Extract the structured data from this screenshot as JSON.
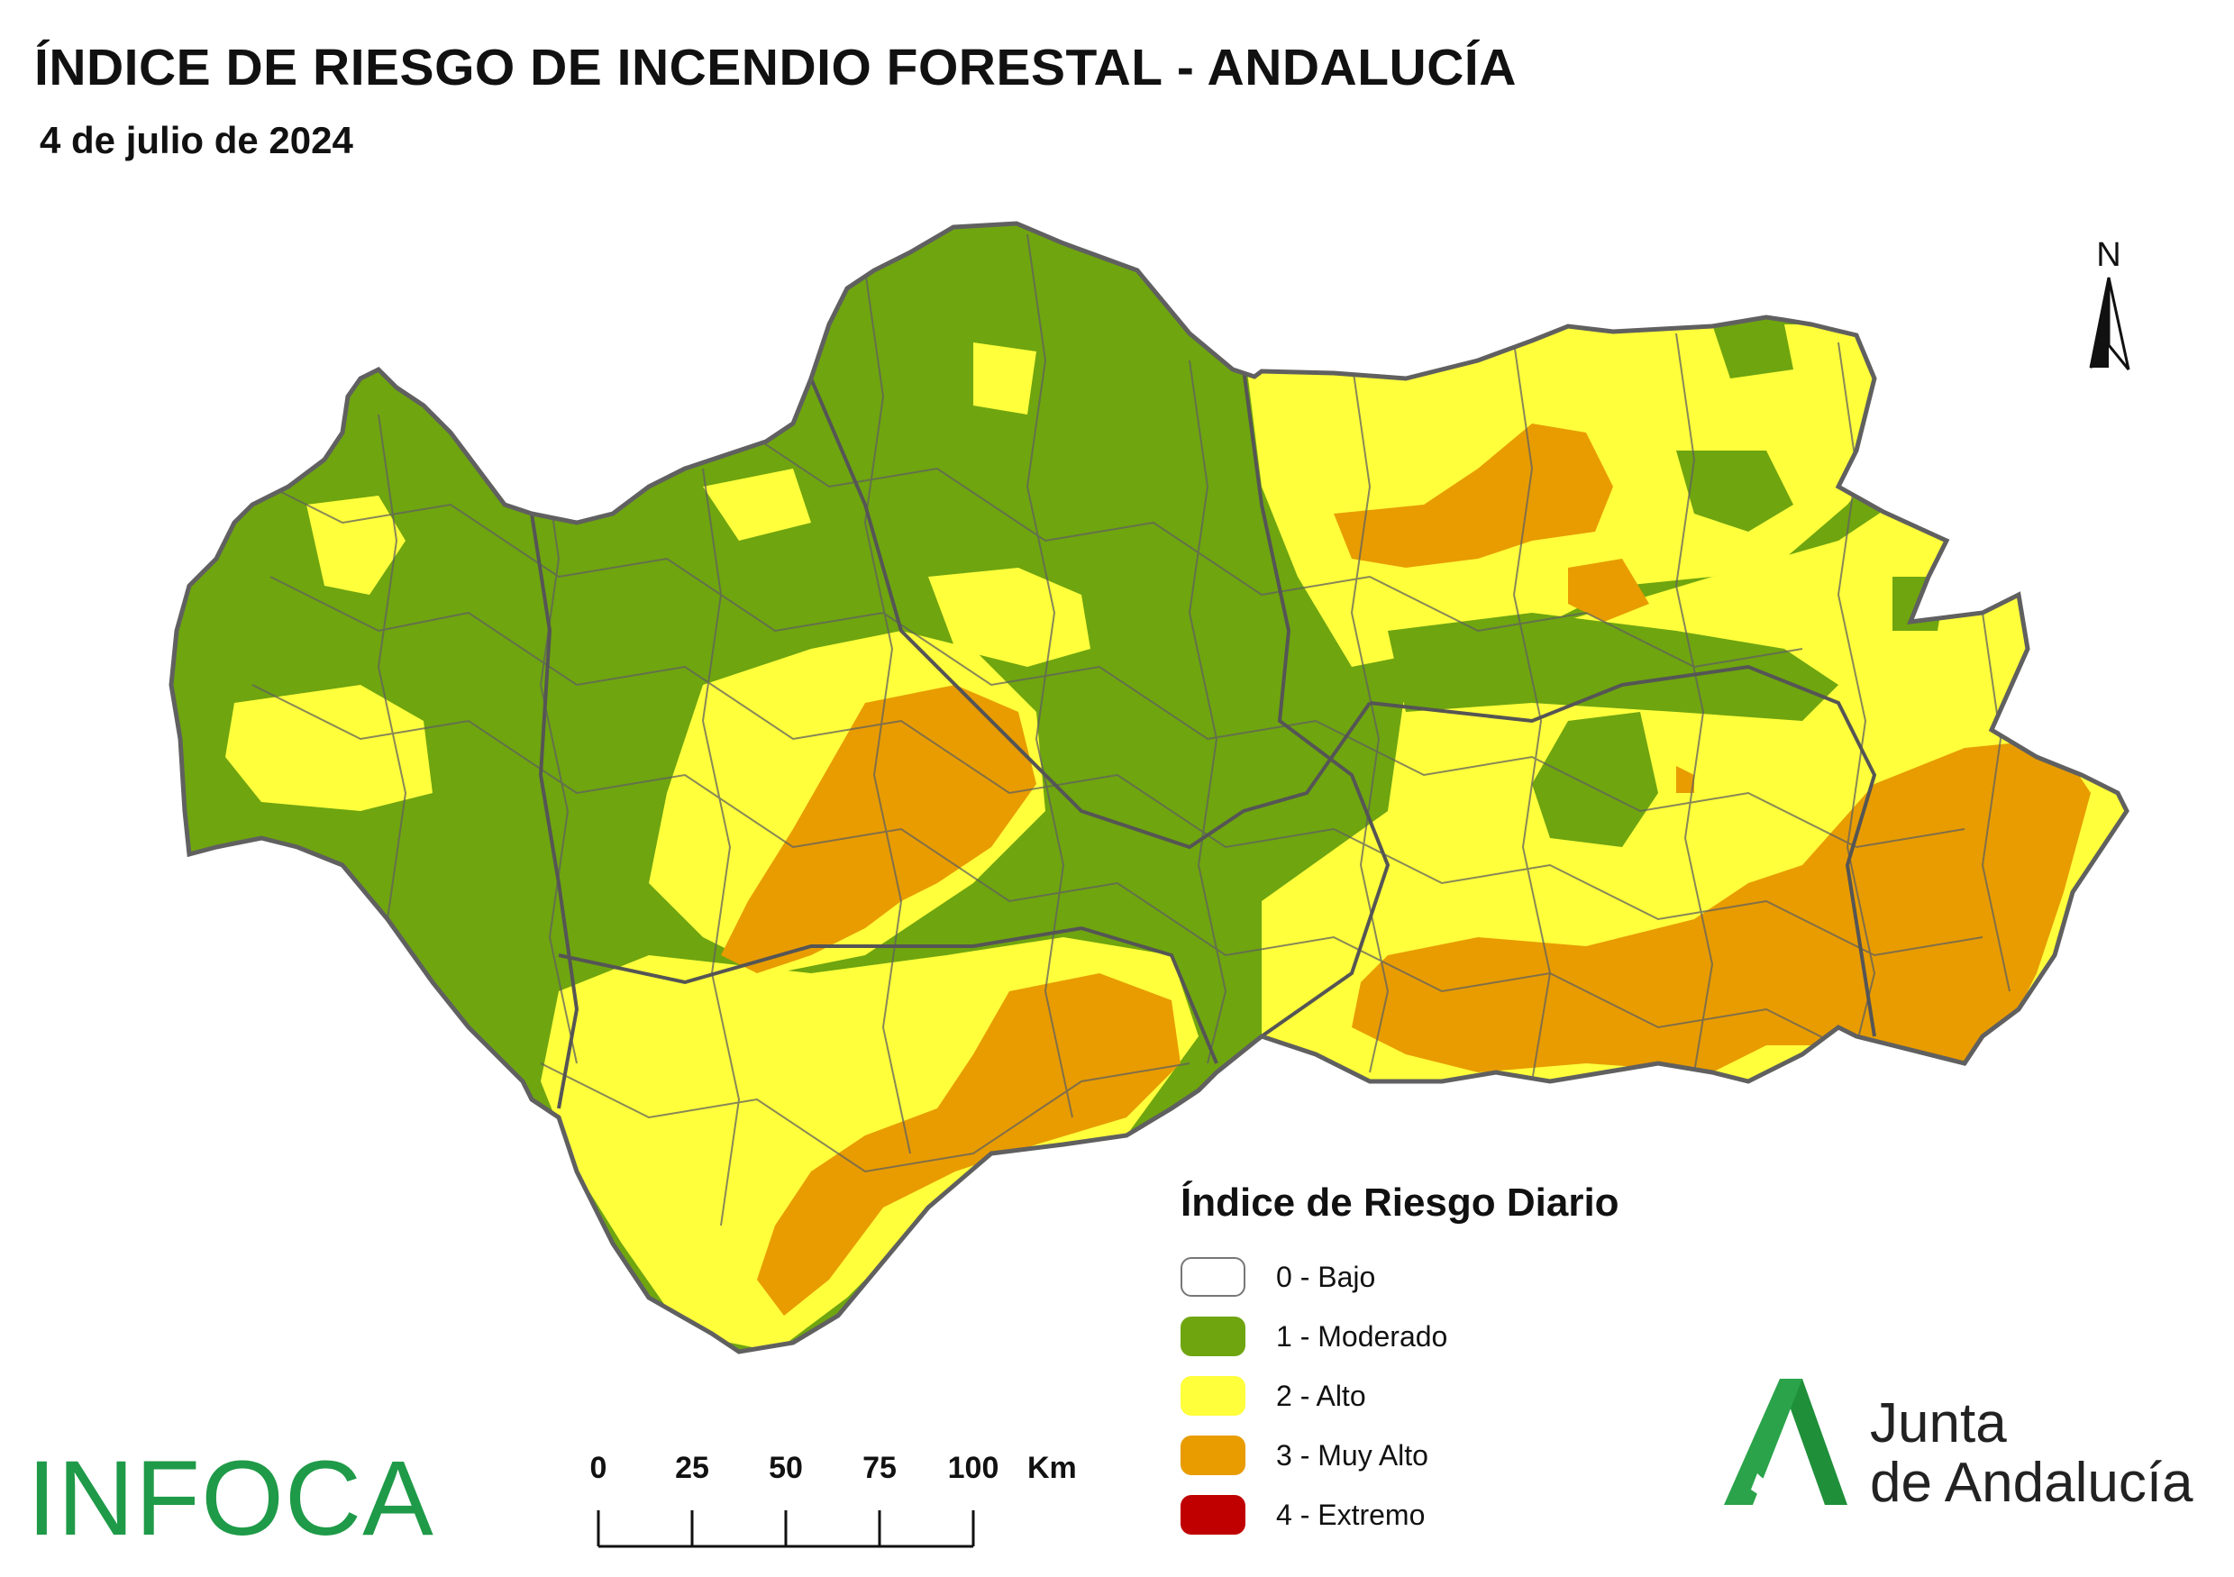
{
  "header": {
    "title": "ÍNDICE DE RIESGO DE INCENDIO FORESTAL - ANDALUCÍA",
    "date": "4 de julio de 2024"
  },
  "north_arrow": {
    "label": "N"
  },
  "legend": {
    "title": "Índice de Riesgo Diario",
    "items": [
      {
        "label": "0 - Bajo",
        "color": "#ffffff"
      },
      {
        "label": "1 - Moderado",
        "color": "#6fa50f"
      },
      {
        "label": "2 - Alto",
        "color": "#ffff3c"
      },
      {
        "label": "3 - Muy Alto",
        "color": "#e89c00"
      },
      {
        "label": "4 - Extremo",
        "color": "#c00000"
      }
    ]
  },
  "scale_bar": {
    "ticks": [
      "0",
      "25",
      "50",
      "75",
      "100"
    ],
    "unit": "Km"
  },
  "logos": {
    "infoca": "INFOCA",
    "junta_line1": "Junta",
    "junta_line2": "de Andalucía"
  },
  "colors": {
    "border": "#606060",
    "moderado": "#6fa50f",
    "alto": "#ffff3c",
    "muy_alto": "#e89c00",
    "extremo": "#c00000",
    "junta_green": "#1f8f3a"
  }
}
